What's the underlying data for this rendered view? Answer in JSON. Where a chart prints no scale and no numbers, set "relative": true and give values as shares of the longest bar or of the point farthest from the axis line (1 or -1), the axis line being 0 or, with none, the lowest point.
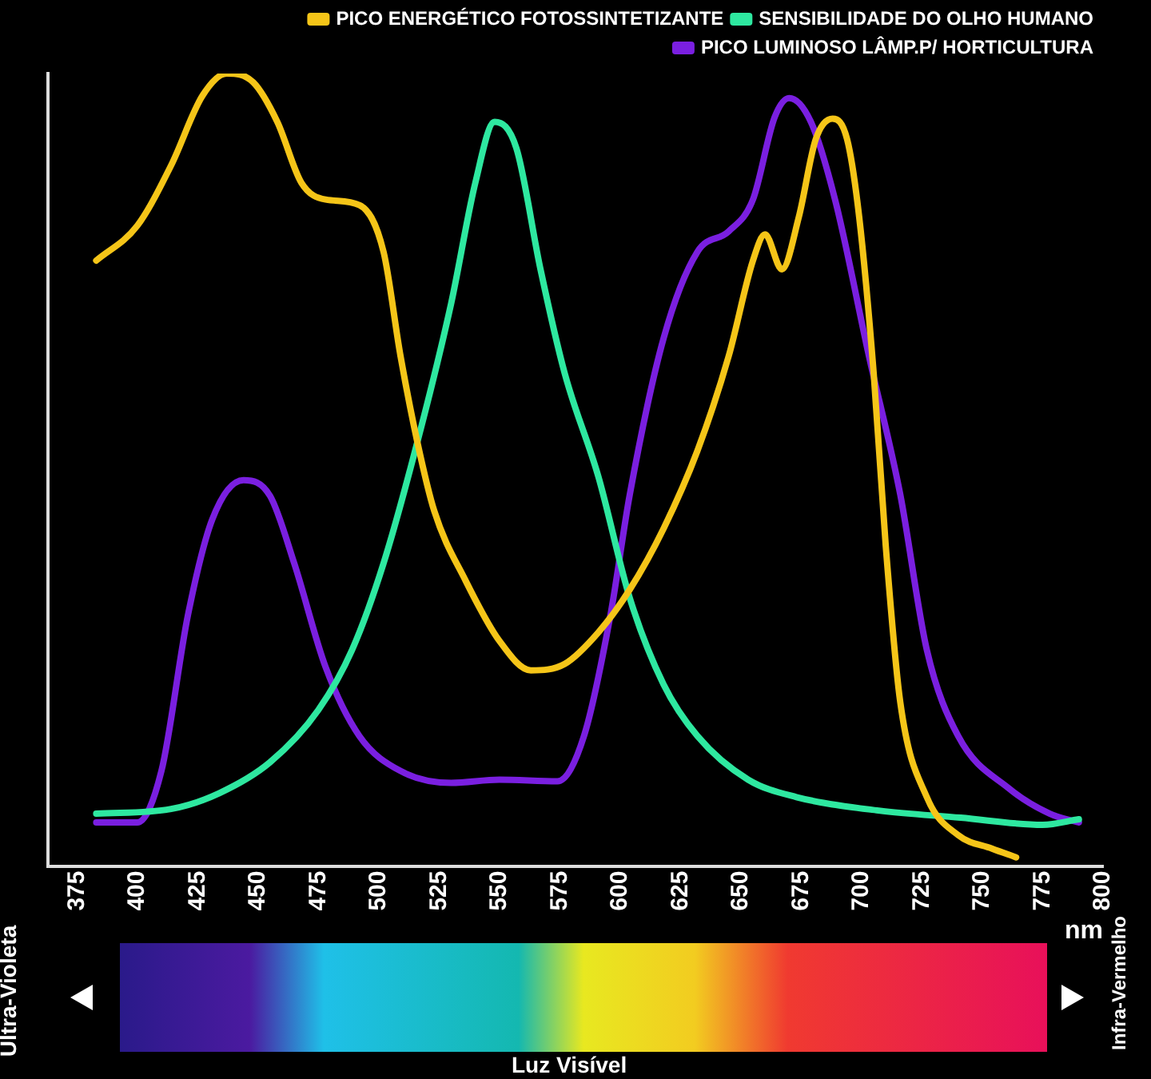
{
  "chart_data": {
    "type": "line",
    "relative": true,
    "xlabel": "nm",
    "xlim": [
      363,
      800
    ],
    "xticks": [
      375,
      400,
      425,
      450,
      475,
      500,
      525,
      550,
      575,
      600,
      625,
      650,
      675,
      700,
      725,
      750,
      775,
      800
    ],
    "legend": "top right",
    "grid": false,
    "marker": "none",
    "line_style": "solid",
    "annotations": [
      "Ultra-Violeta",
      "Luz Visível",
      "Infra-Vermelho"
    ],
    "series": [
      {
        "name": "PICO ENERGÉTICO FOTOSSINTETIZANTE",
        "color": "#f5c518",
        "x": [
          383,
          400,
          414,
          427,
          437,
          448,
          458,
          468,
          478,
          492,
          502,
          509,
          516,
          523,
          536,
          550,
          563,
          577,
          591,
          604,
          618,
          632,
          645,
          655,
          660,
          667,
          674,
          681,
          688,
          694,
          699,
          705,
          710,
          716,
          727,
          740,
          754,
          764
        ],
        "values": [
          0.764,
          0.808,
          0.884,
          0.972,
          1,
          0.989,
          0.939,
          0.862,
          0.841,
          0.834,
          0.775,
          0.644,
          0.535,
          0.448,
          0.36,
          0.284,
          0.247,
          0.255,
          0.295,
          0.349,
          0.426,
          0.524,
          0.644,
          0.764,
          0.797,
          0.753,
          0.819,
          0.917,
          0.943,
          0.917,
          0.819,
          0.622,
          0.404,
          0.207,
          0.087,
          0.039,
          0.022,
          0.011
        ]
      },
      {
        "name": "SENSIBILIDADE DO OLHO HUMANO",
        "color": "#2ee8a0",
        "x": [
          383,
          414,
          434,
          455,
          475,
          489,
          502,
          516,
          530,
          540,
          548,
          557,
          567,
          577,
          591,
          604,
          618,
          632,
          653,
          673,
          707,
          741,
          775,
          790
        ],
        "values": [
          0.066,
          0.072,
          0.092,
          0.131,
          0.197,
          0.273,
          0.382,
          0.535,
          0.71,
          0.862,
          0.939,
          0.906,
          0.753,
          0.622,
          0.491,
          0.338,
          0.229,
          0.164,
          0.109,
          0.087,
          0.07,
          0.061,
          0.052,
          0.059
        ]
      },
      {
        "name": "PICO LUMINOSO LÂMP.P/ HORTICULTURA",
        "color": "#7a1fe0",
        "x": [
          383,
          400,
          410,
          421,
          431,
          444,
          455,
          465,
          478,
          492,
          509,
          530,
          550,
          574,
          585,
          596,
          604,
          618,
          632,
          645,
          655,
          664,
          670,
          679,
          689,
          703,
          716,
          727,
          740,
          761,
          778,
          790
        ],
        "values": [
          0.055,
          0.055,
          0.12,
          0.317,
          0.437,
          0.487,
          0.467,
          0.382,
          0.251,
          0.164,
          0.12,
          0.105,
          0.109,
          0.107,
          0.164,
          0.317,
          0.469,
          0.666,
          0.775,
          0.801,
          0.841,
          0.945,
          0.969,
          0.939,
          0.841,
          0.644,
          0.469,
          0.273,
          0.164,
          0.098,
          0.066,
          0.055
        ]
      }
    ]
  }
}
